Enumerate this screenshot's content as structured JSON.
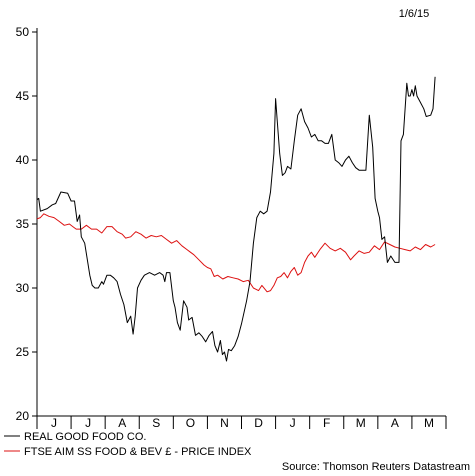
{
  "chart_data": {
    "type": "line",
    "date_label": "1/6/15",
    "source": "Source: Thomson Reuters Datastream",
    "ylim": [
      20,
      50
    ],
    "y_ticks": [
      20,
      25,
      30,
      35,
      40,
      45,
      50
    ],
    "x_range": [
      0,
      12
    ],
    "x_ticks": [
      {
        "label": "J",
        "value": 0.5
      },
      {
        "label": "J",
        "value": 1.5
      },
      {
        "label": "A",
        "value": 2.5
      },
      {
        "label": "S",
        "value": 3.5
      },
      {
        "label": "O",
        "value": 4.5
      },
      {
        "label": "N",
        "value": 5.5
      },
      {
        "label": "D",
        "value": 6.5
      },
      {
        "label": "J",
        "value": 7.5
      },
      {
        "label": "F",
        "value": 8.5
      },
      {
        "label": "M",
        "value": 9.5
      },
      {
        "label": "A",
        "value": 10.5
      },
      {
        "label": "M",
        "value": 11.5
      }
    ],
    "grid": false,
    "legend_position": "bottom-left",
    "series": [
      {
        "name": "REAL GOOD FOOD CO.",
        "color": "#000000",
        "points": [
          [
            0.0,
            36.9
          ],
          [
            0.05,
            37.0
          ],
          [
            0.1,
            36.0
          ],
          [
            0.3,
            36.2
          ],
          [
            0.45,
            36.5
          ],
          [
            0.55,
            36.6
          ],
          [
            0.7,
            37.5
          ],
          [
            0.9,
            37.4
          ],
          [
            1.0,
            36.8
          ],
          [
            1.1,
            36.8
          ],
          [
            1.18,
            35.2
          ],
          [
            1.25,
            35.7
          ],
          [
            1.3,
            34.0
          ],
          [
            1.4,
            33.5
          ],
          [
            1.55,
            31.0
          ],
          [
            1.62,
            30.2
          ],
          [
            1.7,
            30.0
          ],
          [
            1.8,
            30.0
          ],
          [
            1.9,
            30.5
          ],
          [
            1.95,
            30.3
          ],
          [
            2.05,
            31.0
          ],
          [
            2.15,
            31.0
          ],
          [
            2.25,
            30.8
          ],
          [
            2.35,
            30.5
          ],
          [
            2.45,
            29.5
          ],
          [
            2.55,
            28.7
          ],
          [
            2.65,
            27.3
          ],
          [
            2.75,
            27.8
          ],
          [
            2.82,
            26.4
          ],
          [
            2.88,
            27.8
          ],
          [
            2.95,
            30.0
          ],
          [
            3.05,
            30.6
          ],
          [
            3.15,
            31.0
          ],
          [
            3.3,
            31.2
          ],
          [
            3.45,
            31.0
          ],
          [
            3.6,
            31.2
          ],
          [
            3.7,
            31.0
          ],
          [
            3.75,
            30.5
          ],
          [
            3.8,
            31.2
          ],
          [
            3.9,
            31.2
          ],
          [
            4.0,
            29.0
          ],
          [
            4.05,
            28.5
          ],
          [
            4.12,
            27.3
          ],
          [
            4.2,
            26.7
          ],
          [
            4.3,
            29.0
          ],
          [
            4.4,
            28.5
          ],
          [
            4.45,
            27.5
          ],
          [
            4.55,
            27.7
          ],
          [
            4.65,
            26.3
          ],
          [
            4.75,
            26.5
          ],
          [
            4.85,
            26.2
          ],
          [
            4.95,
            25.8
          ],
          [
            5.05,
            26.3
          ],
          [
            5.15,
            26.6
          ],
          [
            5.22,
            25.5
          ],
          [
            5.3,
            25.0
          ],
          [
            5.38,
            25.9
          ],
          [
            5.44,
            24.8
          ],
          [
            5.5,
            25.0
          ],
          [
            5.56,
            24.3
          ],
          [
            5.62,
            25.2
          ],
          [
            5.7,
            25.1
          ],
          [
            5.8,
            25.5
          ],
          [
            5.9,
            26.2
          ],
          [
            6.0,
            27.2
          ],
          [
            6.15,
            29.0
          ],
          [
            6.25,
            30.5
          ],
          [
            6.35,
            33.5
          ],
          [
            6.45,
            35.5
          ],
          [
            6.55,
            36.0
          ],
          [
            6.65,
            35.8
          ],
          [
            6.75,
            36.0
          ],
          [
            6.85,
            37.5
          ],
          [
            6.95,
            40.5
          ],
          [
            7.0,
            44.8
          ],
          [
            7.05,
            43.0
          ],
          [
            7.12,
            40.5
          ],
          [
            7.2,
            38.8
          ],
          [
            7.28,
            39.0
          ],
          [
            7.35,
            39.5
          ],
          [
            7.45,
            39.3
          ],
          [
            7.55,
            41.5
          ],
          [
            7.65,
            43.5
          ],
          [
            7.75,
            44.0
          ],
          [
            7.85,
            43.0
          ],
          [
            7.95,
            42.5
          ],
          [
            8.05,
            41.8
          ],
          [
            8.15,
            42.0
          ],
          [
            8.25,
            41.5
          ],
          [
            8.35,
            41.5
          ],
          [
            8.45,
            41.3
          ],
          [
            8.55,
            41.3
          ],
          [
            8.65,
            42.0
          ],
          [
            8.75,
            40.0
          ],
          [
            8.85,
            39.8
          ],
          [
            8.95,
            39.5
          ],
          [
            9.05,
            40.0
          ],
          [
            9.15,
            40.3
          ],
          [
            9.25,
            39.8
          ],
          [
            9.35,
            39.4
          ],
          [
            9.45,
            39.2
          ],
          [
            9.55,
            39.2
          ],
          [
            9.65,
            39.2
          ],
          [
            9.75,
            43.5
          ],
          [
            9.85,
            41.0
          ],
          [
            9.92,
            37.0
          ],
          [
            10.0,
            36.0
          ],
          [
            10.05,
            35.5
          ],
          [
            10.12,
            33.8
          ],
          [
            10.2,
            34.0
          ],
          [
            10.28,
            32.0
          ],
          [
            10.38,
            32.5
          ],
          [
            10.5,
            32.0
          ],
          [
            10.62,
            32.0
          ],
          [
            10.68,
            41.5
          ],
          [
            10.75,
            42.0
          ],
          [
            10.85,
            46.0
          ],
          [
            10.9,
            45.0
          ],
          [
            10.95,
            45.0
          ],
          [
            11.0,
            45.5
          ],
          [
            11.05,
            45.0
          ],
          [
            11.1,
            45.8
          ],
          [
            11.15,
            45.0
          ],
          [
            11.25,
            44.5
          ],
          [
            11.35,
            44.0
          ],
          [
            11.42,
            43.4
          ],
          [
            11.55,
            43.5
          ],
          [
            11.62,
            44.0
          ],
          [
            11.68,
            46.5
          ]
        ]
      },
      {
        "name": "FTSE AIM SS FOOD & BEV £ - PRICE INDEX",
        "color": "#dd1111",
        "points": [
          [
            0.0,
            35.4
          ],
          [
            0.1,
            35.5
          ],
          [
            0.2,
            35.8
          ],
          [
            0.35,
            35.6
          ],
          [
            0.5,
            35.5
          ],
          [
            0.65,
            35.2
          ],
          [
            0.8,
            34.9
          ],
          [
            0.95,
            35.0
          ],
          [
            1.05,
            34.8
          ],
          [
            1.15,
            34.6
          ],
          [
            1.3,
            34.6
          ],
          [
            1.45,
            34.9
          ],
          [
            1.6,
            34.6
          ],
          [
            1.75,
            34.6
          ],
          [
            1.9,
            34.3
          ],
          [
            2.05,
            34.8
          ],
          [
            2.2,
            34.8
          ],
          [
            2.35,
            34.4
          ],
          [
            2.5,
            34.2
          ],
          [
            2.6,
            33.9
          ],
          [
            2.75,
            34.0
          ],
          [
            2.9,
            34.4
          ],
          [
            3.05,
            34.2
          ],
          [
            3.2,
            33.9
          ],
          [
            3.35,
            34.1
          ],
          [
            3.5,
            34.0
          ],
          [
            3.65,
            34.1
          ],
          [
            3.8,
            33.8
          ],
          [
            3.95,
            33.5
          ],
          [
            4.1,
            33.7
          ],
          [
            4.25,
            33.3
          ],
          [
            4.4,
            33.0
          ],
          [
            4.5,
            32.8
          ],
          [
            4.6,
            32.6
          ],
          [
            4.75,
            32.2
          ],
          [
            4.9,
            31.8
          ],
          [
            5.0,
            31.6
          ],
          [
            5.1,
            31.5
          ],
          [
            5.2,
            30.9
          ],
          [
            5.3,
            31.0
          ],
          [
            5.45,
            30.7
          ],
          [
            5.6,
            30.9
          ],
          [
            5.75,
            30.8
          ],
          [
            5.9,
            30.7
          ],
          [
            6.05,
            30.5
          ],
          [
            6.2,
            30.6
          ],
          [
            6.35,
            30.0
          ],
          [
            6.5,
            29.8
          ],
          [
            6.6,
            30.2
          ],
          [
            6.75,
            29.7
          ],
          [
            6.85,
            29.8
          ],
          [
            6.95,
            30.2
          ],
          [
            7.05,
            30.8
          ],
          [
            7.15,
            30.9
          ],
          [
            7.25,
            31.2
          ],
          [
            7.35,
            30.8
          ],
          [
            7.45,
            31.3
          ],
          [
            7.55,
            31.6
          ],
          [
            7.65,
            31.0
          ],
          [
            7.75,
            31.2
          ],
          [
            7.85,
            32.0
          ],
          [
            7.95,
            32.5
          ],
          [
            8.05,
            32.8
          ],
          [
            8.15,
            32.4
          ],
          [
            8.3,
            33.0
          ],
          [
            8.45,
            33.5
          ],
          [
            8.6,
            33.1
          ],
          [
            8.75,
            32.9
          ],
          [
            8.9,
            33.1
          ],
          [
            9.05,
            32.8
          ],
          [
            9.2,
            32.2
          ],
          [
            9.3,
            32.5
          ],
          [
            9.45,
            32.9
          ],
          [
            9.6,
            32.7
          ],
          [
            9.75,
            32.8
          ],
          [
            9.9,
            33.3
          ],
          [
            10.05,
            33.0
          ],
          [
            10.2,
            33.6
          ],
          [
            10.35,
            33.4
          ],
          [
            10.5,
            33.2
          ],
          [
            10.65,
            33.1
          ],
          [
            10.8,
            33.0
          ],
          [
            10.95,
            32.9
          ],
          [
            11.1,
            33.2
          ],
          [
            11.25,
            33.0
          ],
          [
            11.4,
            33.4
          ],
          [
            11.55,
            33.2
          ],
          [
            11.68,
            33.4
          ]
        ]
      }
    ]
  }
}
